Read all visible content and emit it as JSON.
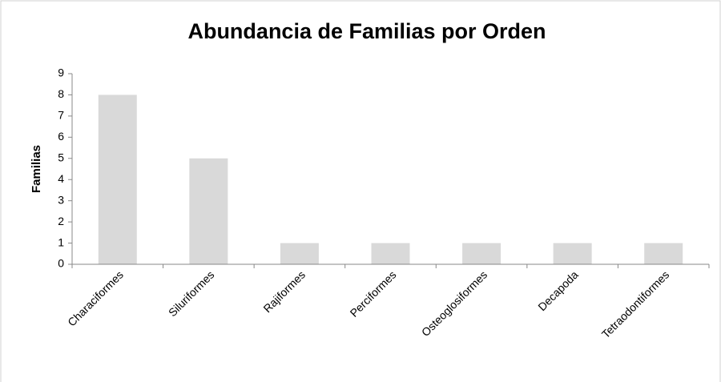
{
  "chart_data": {
    "type": "bar",
    "title": "Abundancia de Familias por Orden",
    "y_label": "Familias",
    "categories": [
      "Characiformes",
      "Siluriformes",
      "Rajiformes",
      "Perciformes",
      "Osteoglosiformes",
      "Decapoda",
      "Tetraodontiformes"
    ],
    "values": [
      8,
      5,
      1,
      1,
      1,
      1,
      1
    ],
    "color": "#d9d9d9",
    "ylim": [
      0,
      9
    ],
    "yticks": [
      0,
      1,
      2,
      3,
      4,
      5,
      6,
      7,
      8,
      9
    ],
    "grid": false
  }
}
